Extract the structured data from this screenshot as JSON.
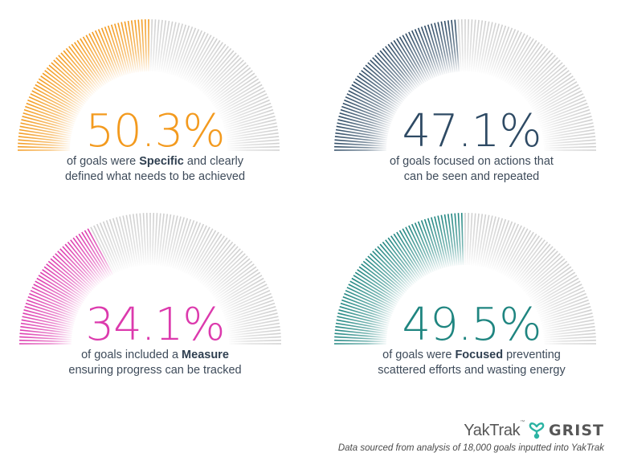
{
  "chart_data": [
    {
      "type": "gauge",
      "value": 50.3,
      "max": 100,
      "label": "50.3%",
      "caption_pre": "of goals were ",
      "caption_bold": "Specific",
      "caption_post": " and clearly defined what needs to be achieved",
      "color": "#f39a1e"
    },
    {
      "type": "gauge",
      "value": 47.1,
      "max": 100,
      "label": "47.1%",
      "caption_pre": "of goals focused on actions that can be seen and repeated",
      "caption_bold": "",
      "caption_post": "",
      "color": "#2e4a64"
    },
    {
      "type": "gauge",
      "value": 34.1,
      "max": 100,
      "label": "34.1%",
      "caption_pre": "of goals included a ",
      "caption_bold": "Measure",
      "caption_post": " ensuring progress can be tracked",
      "color": "#dc3aad"
    },
    {
      "type": "gauge",
      "value": 49.5,
      "max": 100,
      "label": "49.5%",
      "caption_pre": "of goals were ",
      "caption_bold": "Focused",
      "caption_post": " preventing scattered efforts and wasting energy",
      "color": "#1f8580"
    }
  ],
  "gauges": [
    {
      "value_label": "50.3%",
      "line1_pre": "of goals were ",
      "line1_bold": "Specific",
      "line1_post": " and clearly",
      "line2": "defined what needs to be achieved"
    },
    {
      "value_label": "47.1%",
      "line1_pre": "of goals focused on actions that",
      "line1_bold": "",
      "line1_post": "",
      "line2": "can be seen and repeated"
    },
    {
      "value_label": "34.1%",
      "line1_pre": "of goals included a ",
      "line1_bold": "Measure",
      "line1_post": "",
      "line2": "ensuring progress can be tracked"
    },
    {
      "value_label": "49.5%",
      "line1_pre": "of goals were ",
      "line1_bold": "Focused",
      "line1_post": " preventing",
      "line2": "scattered efforts and wasting energy"
    }
  ],
  "colors": {
    "track": "#cfcfcf",
    "caption_text": "#3e4b5a",
    "logo_teal": "#2bb3a3",
    "logo_gray": "#575757"
  },
  "footer": {
    "logo_primary": "YakTrak",
    "logo_tm": "™",
    "logo_icon": "yaktrak-heart-y-icon",
    "logo_secondary": "GRIST",
    "note": "Data sourced from analysis of 18,000 goals inputted into YakTrak"
  }
}
